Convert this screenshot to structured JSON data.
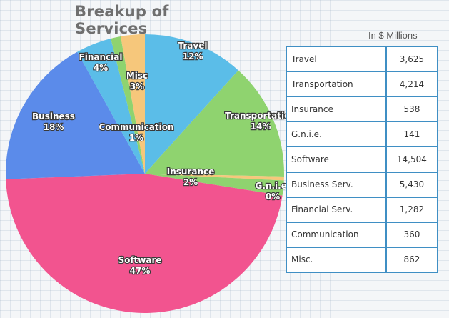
{
  "chart_data": {
    "type": "pie",
    "title": "Breakup of Services",
    "unit_note": "In $ Millions",
    "slices": [
      {
        "label": "Travel",
        "pct_label": "12%",
        "value": 3625,
        "color": "#5bbde8"
      },
      {
        "label": "Transportation",
        "pct_label": "14%",
        "value": 4214,
        "color": "#8fd36f"
      },
      {
        "label": "G.n.i.e.",
        "pct_label": "0%",
        "value": 141,
        "color": "#f6c77b"
      },
      {
        "label": "Insurance",
        "pct_label": "2%",
        "value": 538,
        "color": "#8fd36f"
      },
      {
        "label": "Software",
        "pct_label": "47%",
        "value": 14504,
        "color": "#f2548f"
      },
      {
        "label": "Business",
        "pct_label": "18%",
        "value": 5430,
        "color": "#5b8bea"
      },
      {
        "label": "Financial",
        "pct_label": "4%",
        "value": 1282,
        "color": "#5bbde8"
      },
      {
        "label": "Communication",
        "pct_label": "1%",
        "value": 360,
        "color": "#8fd36f"
      },
      {
        "label": "Misc",
        "pct_label": "3%",
        "value": 862,
        "color": "#f6c77b"
      }
    ],
    "table": [
      {
        "label": "Travel",
        "value": "3,625"
      },
      {
        "label": "Transportation",
        "value": "4,214"
      },
      {
        "label": "Insurance",
        "value": "538"
      },
      {
        "label": "G.n.i.e.",
        "value": "141"
      },
      {
        "label": "Software",
        "value": "14,504"
      },
      {
        "label": "Business Serv.",
        "value": "5,430"
      },
      {
        "label": "Financial Serv.",
        "value": "1,282"
      },
      {
        "label": "Communication",
        "value": "360"
      },
      {
        "label": "Misc.",
        "value": "862"
      }
    ]
  }
}
